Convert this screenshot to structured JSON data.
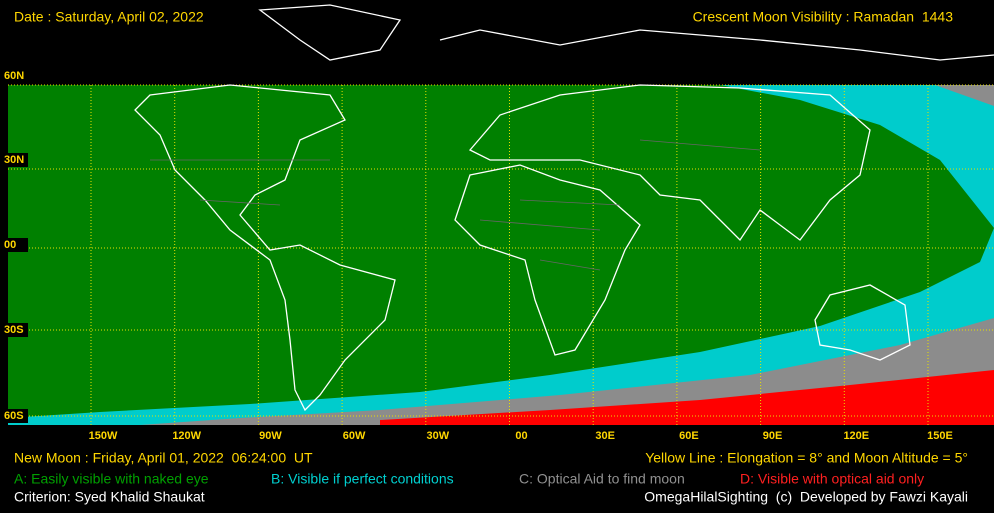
{
  "header": {
    "date": "Date : Saturday, April 02, 2022",
    "title": "Crescent Moon Visibility : Ramadan  1443"
  },
  "map": {
    "latitude_labels": [
      "60N",
      "30N",
      "00",
      "30S",
      "60S"
    ],
    "longitude_labels": [
      "150W",
      "120W",
      "90W",
      "60W",
      "30W",
      "00",
      "30E",
      "60E",
      "90E",
      "120E",
      "150E"
    ]
  },
  "footer": {
    "new_moon": "New Moon : Friday, April 01, 2022  06:24:00  UT",
    "yellow_line": "Yellow Line : Elongation = 8° and Moon Altitude = 5°",
    "criterion": "Criterion: Syed Khalid Shaukat",
    "credit": "OmegaHilalSighting  (c)  Developed by Fawzi Kayali"
  },
  "legend": [
    {
      "label": "A: Easily visible with naked eye",
      "color": "#00a000"
    },
    {
      "label": "B: Visible if perfect conditions",
      "color": "#00d0d0"
    },
    {
      "label": "C: Optical Aid to find moon",
      "color": "#909090"
    },
    {
      "label": "D: Visible with optical aid only",
      "color": "#ff2020"
    }
  ]
}
